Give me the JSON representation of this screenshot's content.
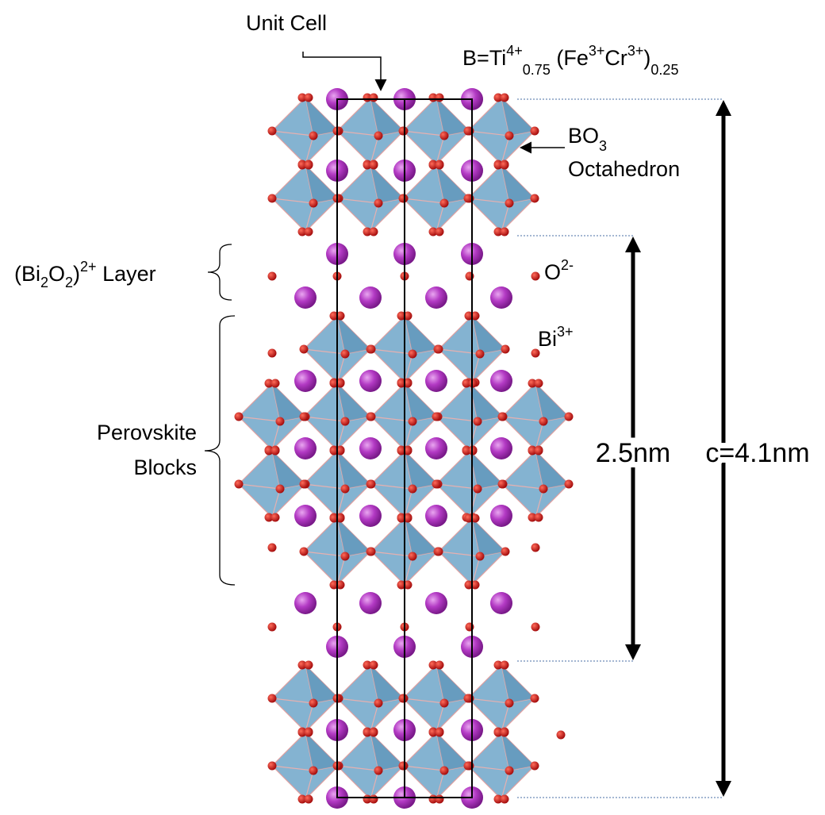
{
  "labels": {
    "unit_cell": "Unit Cell",
    "formula": [
      "B=Ti",
      "4+",
      "0.75",
      " (Fe",
      "3+",
      "Cr",
      "3+",
      ")",
      "0.25"
    ],
    "octahedron": [
      "BO",
      "3",
      "Octahedron"
    ],
    "layer": [
      "(Bi",
      "2",
      "O",
      "2",
      ")",
      "2+",
      " Layer"
    ],
    "oxygen": [
      "O",
      "2-"
    ],
    "bismuth": [
      "Bi",
      "3+"
    ],
    "perovskite": [
      "Perovskite",
      "Blocks"
    ],
    "block_height": "2.5nm",
    "c_axis": "c=4.1nm"
  }
}
